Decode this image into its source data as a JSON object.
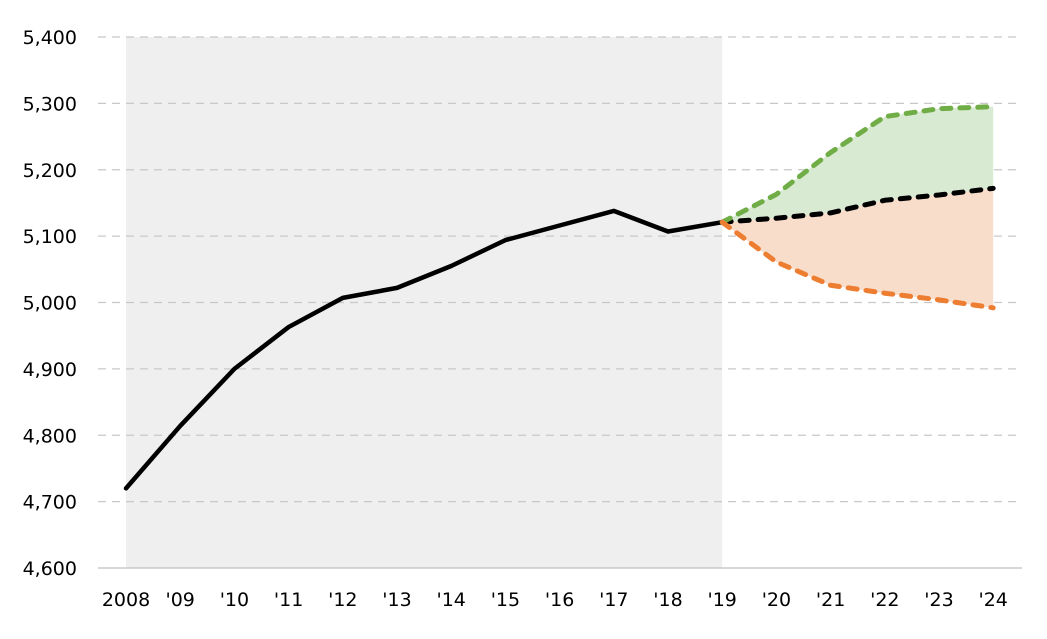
{
  "chart_data": {
    "type": "line",
    "title": "",
    "xlabel": "",
    "ylabel": "",
    "ylim": [
      4600,
      5400
    ],
    "yticks": [
      4600,
      4700,
      4800,
      4900,
      5000,
      5100,
      5200,
      5300,
      5400
    ],
    "ytick_labels": [
      "4,600",
      "4,700",
      "4,800",
      "4,900",
      "5,000",
      "5,100",
      "5,200",
      "5,300",
      "5,400"
    ],
    "grid": "horizontal dashed",
    "categories": [
      "2008",
      "'09",
      "'10",
      "'11",
      "'12",
      "'13",
      "'14",
      "'15",
      "'16",
      "'17",
      "'18",
      "'19",
      "'20",
      "'21",
      "'22",
      "'23",
      "'24"
    ],
    "shaded_historical_range": [
      "2008",
      "'19"
    ],
    "series": [
      {
        "style": "solid",
        "color": "#000000",
        "x": [
          "2008",
          "'09",
          "'10",
          "'11",
          "'12",
          "'13",
          "'14",
          "'15",
          "'16",
          "'17",
          "'18",
          "'19"
        ],
        "values": [
          4720,
          4814,
          4900,
          4963,
          5007,
          5022,
          5055,
          5094,
          5116,
          5138,
          5107,
          5121
        ]
      },
      {
        "style": "dashed",
        "color": "#000000",
        "x": [
          "'19",
          "'20",
          "'21",
          "'22",
          "'23",
          "'24"
        ],
        "values": [
          5121,
          5127,
          5135,
          5154,
          5162,
          5172
        ]
      },
      {
        "style": "dashed",
        "color": "#70AD47",
        "fill": "#D9EAD3",
        "x": [
          "'19",
          "'20",
          "'21",
          "'22",
          "'23",
          "'24"
        ],
        "values": [
          5121,
          5163,
          5226,
          5280,
          5292,
          5295
        ]
      },
      {
        "style": "dashed",
        "color": "#ED7D31",
        "fill": "#F8DDCB",
        "x": [
          "'19",
          "'20",
          "'21",
          "'22",
          "'23",
          "'24"
        ],
        "values": [
          5121,
          5061,
          5026,
          5014,
          5004,
          4992
        ]
      }
    ]
  }
}
